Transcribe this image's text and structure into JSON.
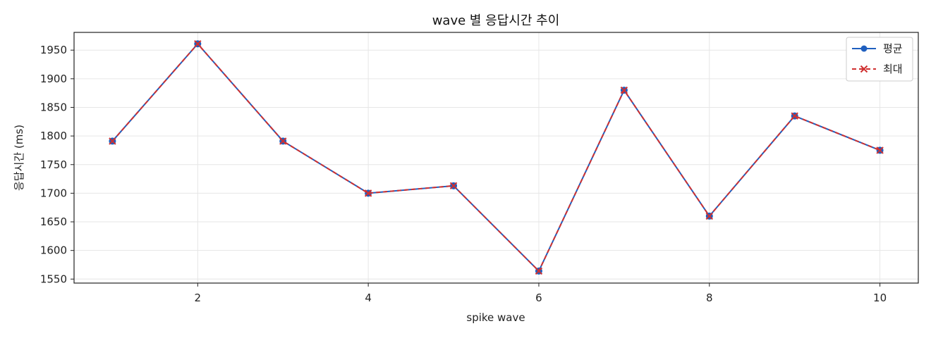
{
  "chart_data": {
    "type": "line",
    "title": "wave 별 응답시간 추이",
    "xlabel": "spike wave",
    "ylabel": "응답시간 (ms)",
    "x": [
      1,
      2,
      3,
      4,
      5,
      6,
      7,
      8,
      9,
      10
    ],
    "xlim": [
      0.55,
      10.45
    ],
    "ylim": [
      1543,
      1981
    ],
    "x_ticks": [
      2,
      4,
      6,
      8,
      10
    ],
    "y_ticks": [
      1550,
      1600,
      1650,
      1700,
      1750,
      1800,
      1850,
      1900,
      1950
    ],
    "grid": true,
    "legend_position": "top-right",
    "series": [
      {
        "name": "평균",
        "values": [
          1791,
          1961,
          1791,
          1700,
          1713,
          1564,
          1880,
          1660,
          1835,
          1775
        ],
        "color": "#1f5fbf",
        "line_style": "solid",
        "marker": "circle"
      },
      {
        "name": "최대",
        "values": [
          1791,
          1961,
          1791,
          1700,
          1713,
          1564,
          1880,
          1660,
          1835,
          1775
        ],
        "color": "#d03030",
        "line_style": "dashed",
        "marker": "x"
      }
    ]
  }
}
